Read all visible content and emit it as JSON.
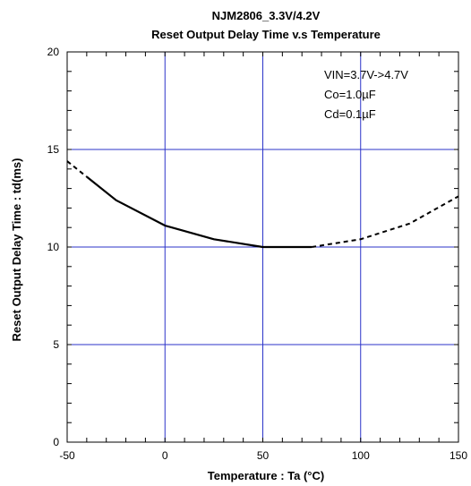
{
  "chart_data": {
    "type": "line",
    "title_line1": "NJM2806_3.3V/4.2V",
    "title_line2": "Reset Output Delay Time v.s Temperature",
    "xlabel": "Temperature : Ta (°C)",
    "ylabel": "Reset Output Delay Time : td(ms)",
    "xlim": [
      -50,
      150
    ],
    "ylim": [
      0,
      20
    ],
    "xticks": [
      -50,
      0,
      50,
      100,
      150
    ],
    "yticks": [
      0,
      5,
      10,
      15,
      20
    ],
    "grid": true,
    "annotations": [
      "VIN=3.7V->4.7V",
      "Co=1.0µF",
      "Cd=0.1µF"
    ],
    "series": [
      {
        "style": "solid",
        "x": [
          -40,
          -25,
          0,
          25,
          50,
          75
        ],
        "y": [
          13.6,
          12.4,
          11.1,
          10.4,
          10.0,
          10.0
        ]
      },
      {
        "style": "dashed",
        "x": [
          -50,
          -40
        ],
        "y": [
          14.4,
          13.6
        ]
      },
      {
        "style": "dashed",
        "x": [
          75,
          100,
          125,
          150
        ],
        "y": [
          10.0,
          10.4,
          11.2,
          12.6
        ]
      }
    ]
  }
}
